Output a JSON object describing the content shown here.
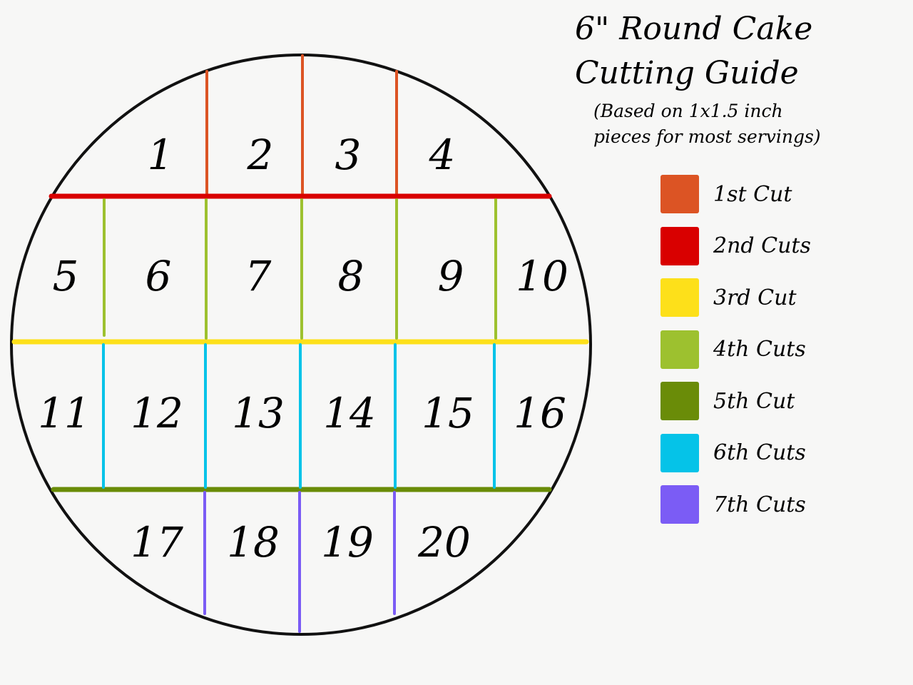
{
  "title": {
    "line1": "6\" Round Cake",
    "line2": "Cutting Guide"
  },
  "subtitle": {
    "line1": "(Based on 1x1.5 inch",
    "line2": "pieces for most servings)"
  },
  "legend": [
    {
      "label": "1st Cut",
      "color": "#dc5424"
    },
    {
      "label": "2nd Cuts",
      "color": "#d90000"
    },
    {
      "label": "3rd Cut",
      "color": "#fde01a"
    },
    {
      "label": "4th Cuts",
      "color": "#9dc12f"
    },
    {
      "label": "5th Cut",
      "color": "#6a8c08"
    },
    {
      "label": "6th Cuts",
      "color": "#05c3e8"
    },
    {
      "label": "7th Cuts",
      "color": "#7b5cf5"
    }
  ],
  "pieces": [
    "1",
    "2",
    "3",
    "4",
    "5",
    "6",
    "7",
    "8",
    "9",
    "10",
    "11",
    "12",
    "13",
    "14",
    "15",
    "16",
    "17",
    "18",
    "19",
    "20"
  ]
}
